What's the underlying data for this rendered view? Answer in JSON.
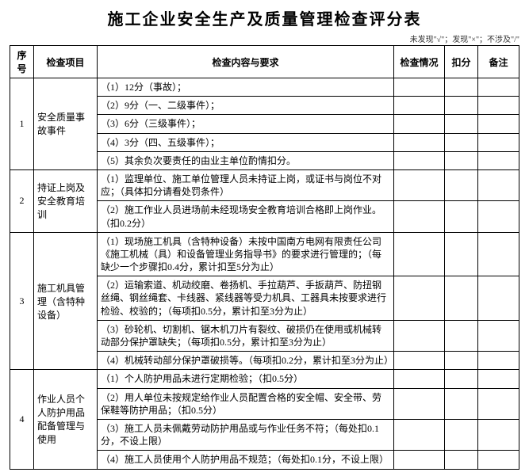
{
  "title": "施工企业安全生产及质量管理检查评分表",
  "legend": "未发现\"√\"；发现\"×\"；不涉及\"/\"",
  "header": {
    "seq": "序号",
    "project": "检查项目",
    "content": "检查内容与要求",
    "check": "检查情况",
    "deduct": "扣分",
    "note": "备注"
  },
  "sections": [
    {
      "seq": "1",
      "project": "安全质量事故事件",
      "items": [
        "（1）12分（事故）；",
        "（2）9分（一、二级事件）；",
        "（3）6分（三级事件）；",
        "（4）3分（四、五级事件）；",
        "（5）其余负次要责任的由业主单位酌情扣分。"
      ]
    },
    {
      "seq": "2",
      "project": "持证上岗及安全教育培训",
      "items": [
        "（1）监理单位、施工单位管理人员未持证上岗，或证书与岗位不对应；（具体扣分请看处罚条件）",
        "（2）施工作业人员进场前未经现场安全教育培训合格即上岗作业。（扣0.2分）"
      ]
    },
    {
      "seq": "3",
      "project": "施工机具管理（含特种设备）",
      "items": [
        "（1）现场施工机具（含特种设备）未按中国南方电网有限责任公司《施工机械（具）和设备管理业务指导书》的要求进行管理的；（每缺少一个步骤扣0.4分，累计扣至5分为止）",
        "（2）运输索道、机动绞磨、卷扬机、手拉葫芦、手扳葫芦、防扭钢丝绳、钢丝绳套、卡线器、紧线器等受力机具、工器具未按要求进行检验、校验的；（每项扣0.5分，累计扣至3分为止）",
        "（3）砂轮机、切割机、锯木机刀片有裂纹、破损仍在使用或机械转动部分保护罩缺失；（每项扣0.5分，累计扣至3分为止）",
        "（4）机械转动部分保护罩破损等。（每项扣0.2分，累计扣至3分为止）"
      ]
    },
    {
      "seq": "4",
      "project": "作业人员个人防护用品配备管理与使用",
      "items": [
        "（1）个人防护用品未进行定期检验；（扣0.5分）",
        "（2）用人单位未按规定给作业人员配置合格的安全帽、安全带、劳保鞋等防护用品；（扣0.5分）",
        "（3）施工人员未佩戴劳动防护用品或与作业任务不符；（每处扣0.1分，不设上限）",
        "（4）施工人员使用个人防护用品不规范；（每处扣0.1分，不设上限）"
      ]
    }
  ]
}
